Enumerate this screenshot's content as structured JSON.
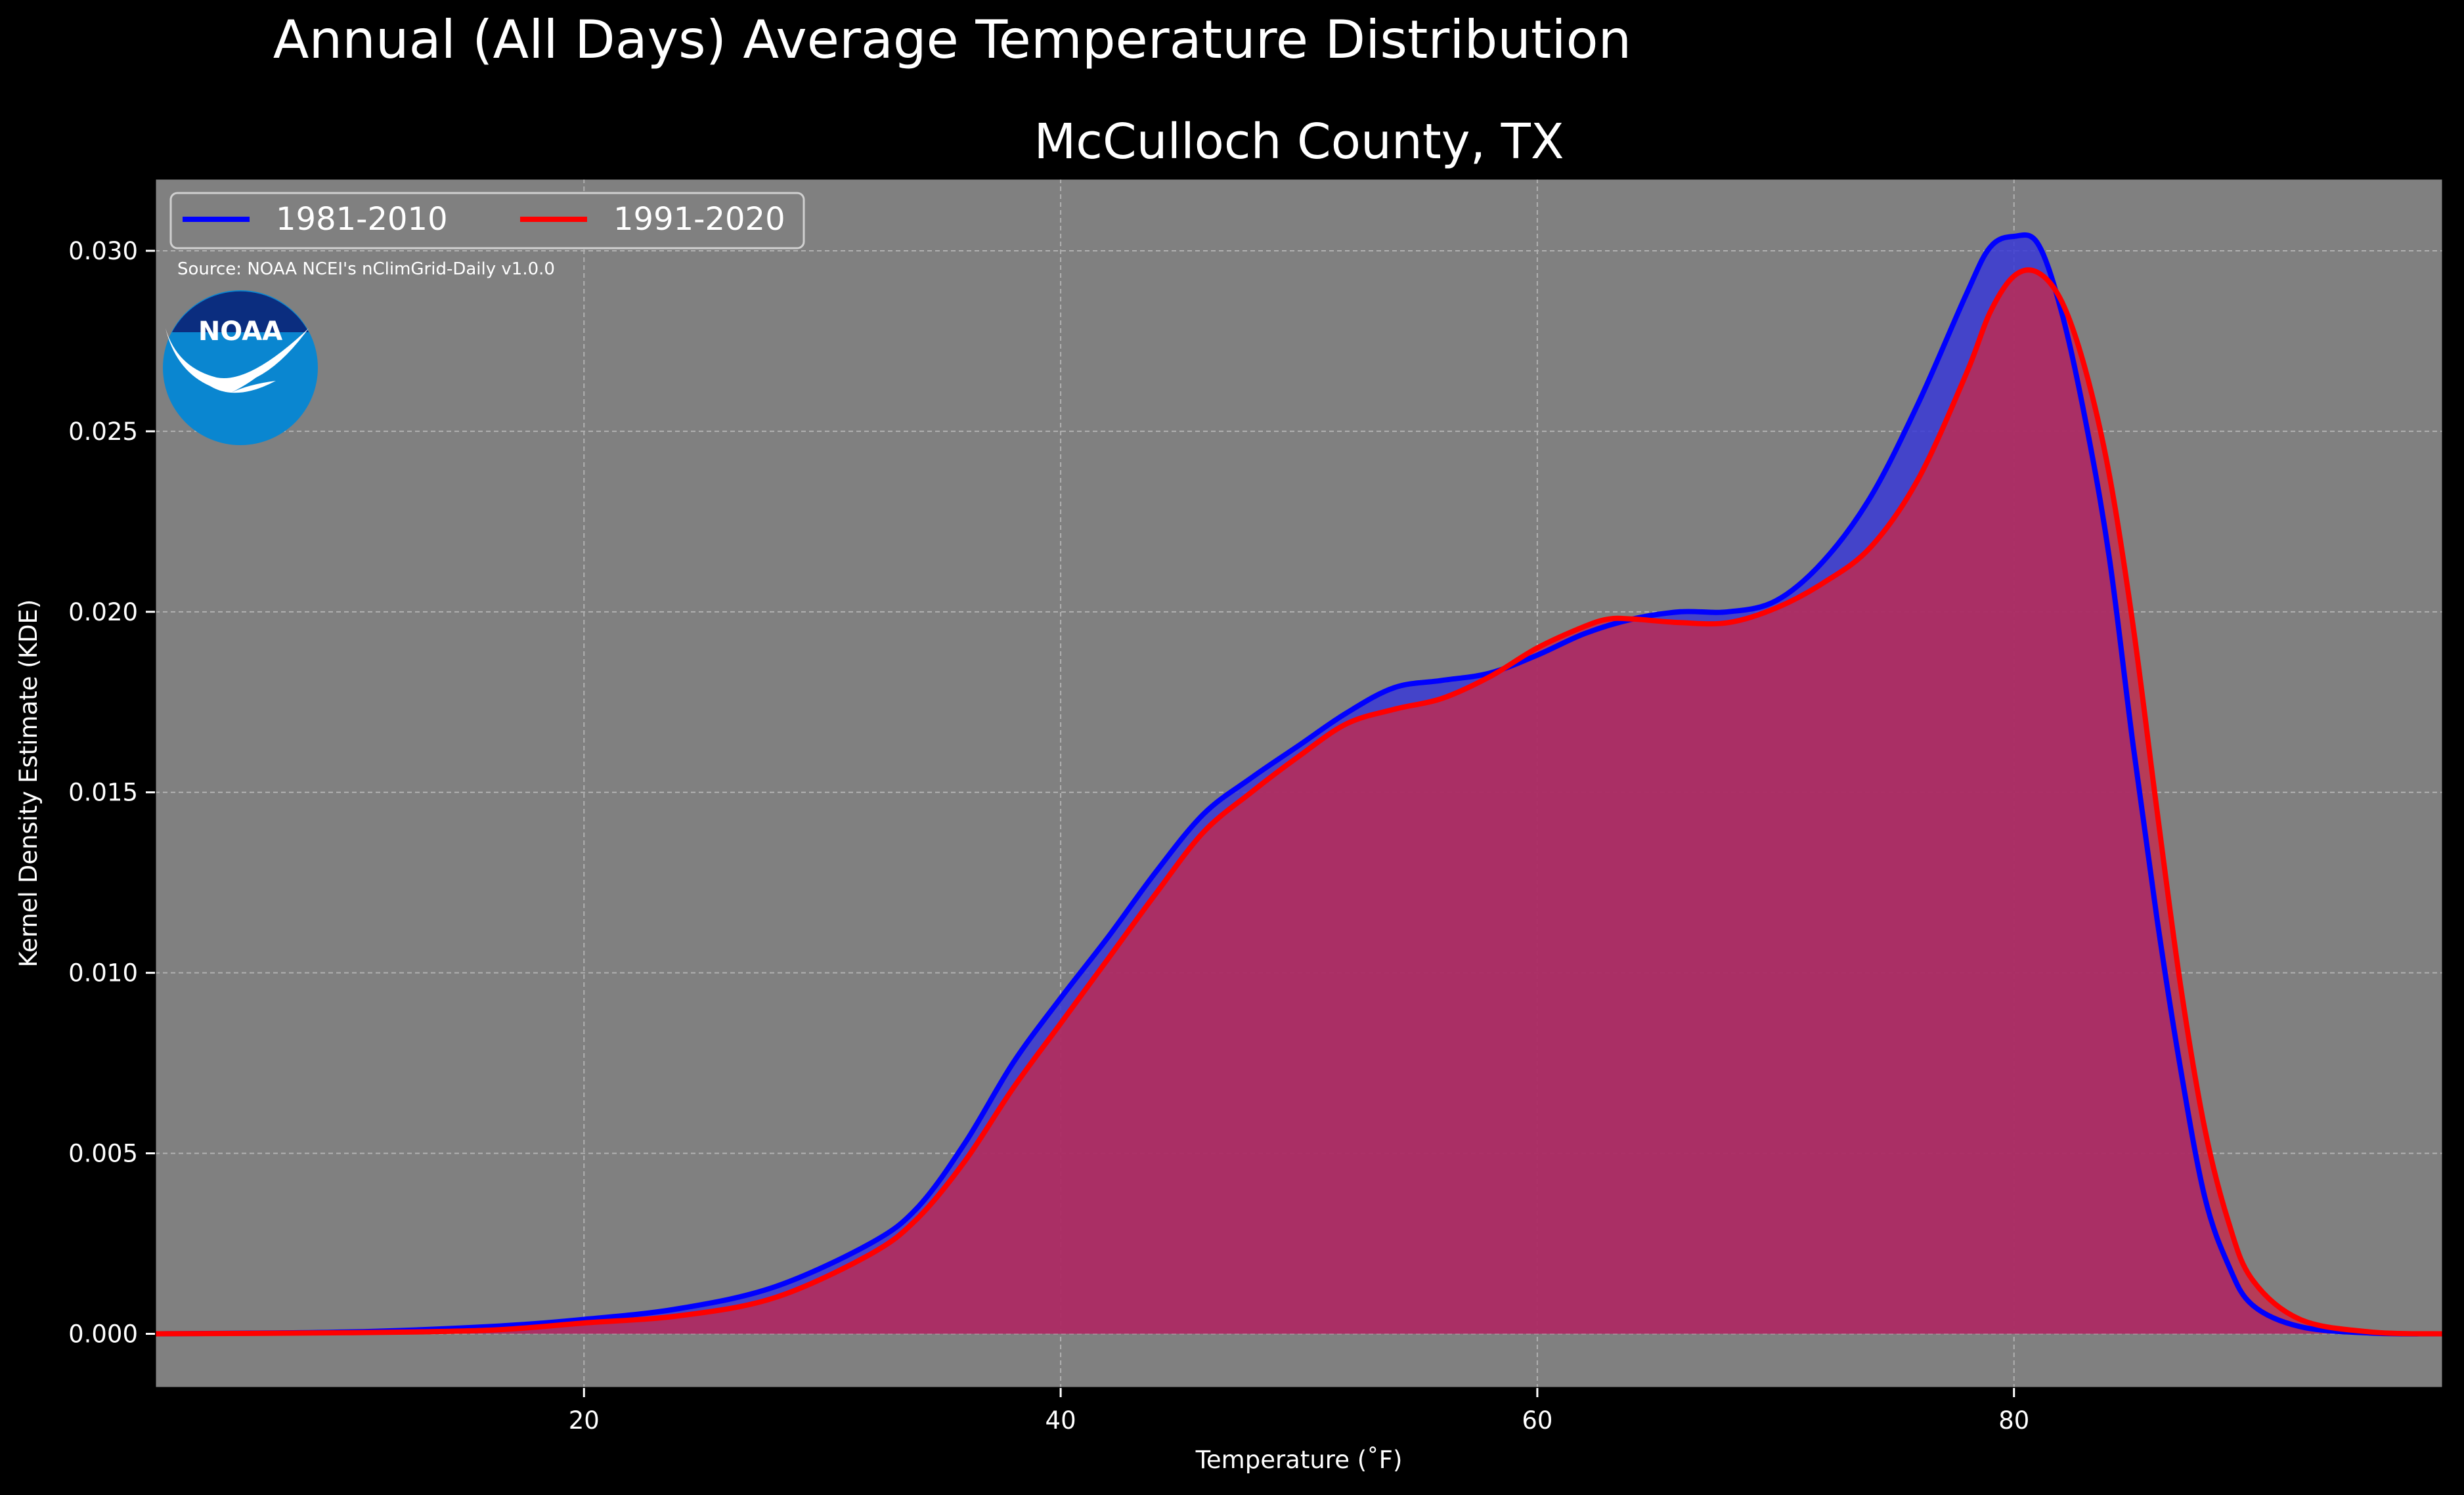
{
  "chart_data": {
    "type": "area",
    "title": "Annual (All Days) Average Temperature Distribution",
    "subtitle": "McCulloch County, TX",
    "xlabel": "Temperature (˚F)",
    "ylabel": "Kernel Density Estimate (KDE)",
    "xlim": [
      2,
      98
    ],
    "ylim": [
      -0.0015,
      0.032
    ],
    "xticks": [
      20,
      40,
      60,
      80
    ],
    "xtick_labels": [
      "20",
      "40",
      "60",
      "80"
    ],
    "yticks": [
      0,
      0.005,
      0.01,
      0.015,
      0.02,
      0.025,
      0.03
    ],
    "ytick_labels": [
      "0.000",
      "0.005",
      "0.010",
      "0.015",
      "0.020",
      "0.025",
      "0.030"
    ],
    "grid": true,
    "legend_position": "top-left",
    "annotation": "Source: NOAA NCEI's nClimGrid-Daily v1.0.0",
    "logo_text": "NOAA",
    "background_color": "#808080",
    "figure_color": "#000000",
    "series": [
      {
        "name": "1981-2010",
        "color": "#0000ff",
        "fill": "#3a3ad6",
        "x": [
          2,
          10,
          16,
          20,
          24,
          28,
          32,
          34,
          36,
          38,
          40,
          42,
          44,
          46,
          48,
          50,
          52,
          54,
          56,
          58,
          60,
          62,
          64,
          66,
          68,
          70,
          72,
          74,
          76,
          78,
          79,
          80,
          81,
          82,
          83,
          84,
          85,
          86,
          87,
          88,
          89,
          90,
          92,
          95,
          98
        ],
        "y": [
          0,
          5e-05,
          0.0002,
          0.0004,
          0.0007,
          0.0013,
          0.0025,
          0.0035,
          0.0053,
          0.0075,
          0.0093,
          0.011,
          0.0128,
          0.0144,
          0.0154,
          0.0163,
          0.0172,
          0.0179,
          0.0181,
          0.0183,
          0.0188,
          0.0194,
          0.0198,
          0.02,
          0.02,
          0.0203,
          0.0214,
          0.0232,
          0.0258,
          0.0288,
          0.0301,
          0.0304,
          0.0302,
          0.0283,
          0.0253,
          0.0215,
          0.0163,
          0.0115,
          0.0073,
          0.0038,
          0.0019,
          0.0008,
          0.0002,
          2e-05,
          0
        ]
      },
      {
        "name": "1991-2020",
        "color": "#ff0000",
        "fill": "#c42a4c",
        "x": [
          2,
          10,
          16,
          20,
          24,
          28,
          32,
          34,
          36,
          38,
          40,
          42,
          44,
          46,
          48,
          50,
          52,
          54,
          56,
          58,
          60,
          62,
          63,
          64,
          66,
          68,
          70,
          72,
          74,
          76,
          78,
          79,
          80,
          81,
          82,
          83,
          84,
          85,
          86,
          87,
          88,
          89,
          90,
          92,
          95,
          98
        ],
        "y": [
          0,
          3e-05,
          0.0001,
          0.0003,
          0.0005,
          0.001,
          0.0022,
          0.0032,
          0.0048,
          0.0068,
          0.0086,
          0.0104,
          0.0122,
          0.0139,
          0.015,
          0.016,
          0.0169,
          0.0173,
          0.0176,
          0.0182,
          0.019,
          0.0196,
          0.0198,
          0.0198,
          0.0197,
          0.0197,
          0.0201,
          0.0208,
          0.0218,
          0.0237,
          0.0266,
          0.0283,
          0.0293,
          0.0294,
          0.0286,
          0.0267,
          0.0238,
          0.0196,
          0.0145,
          0.0096,
          0.0057,
          0.0031,
          0.0015,
          0.0004,
          5e-05,
          0
        ]
      }
    ]
  }
}
